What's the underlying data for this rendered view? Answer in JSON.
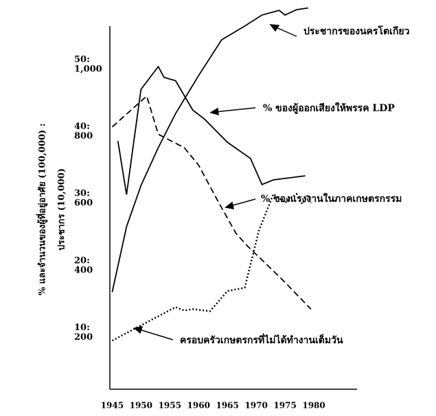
{
  "chart_data": {
    "type": "line",
    "y_axis_label": [
      "% และจำนวนของผู้ที่อยู่อาศัย (100,000) :",
      "ประชากร (10,000)"
    ],
    "xlim": [
      1944.6,
      1987.5
    ],
    "xticks": [
      1945,
      1950,
      1955,
      1960,
      1965,
      1970,
      1975,
      1980
    ],
    "ylim": [
      39,
      1123
    ],
    "yticks": [
      200,
      400,
      600,
      800,
      {
        "value": 1000,
        "label": "1,000"
      }
    ],
    "y2lim": [
      1.95,
      56.15
    ],
    "y2ticks": [
      {
        "value": 10,
        "label": "10:"
      },
      {
        "value": 20,
        "label": "20:"
      },
      {
        "value": 30,
        "label": "30:"
      },
      {
        "value": 40,
        "label": "40:"
      },
      {
        "value": 50,
        "label": "50:"
      }
    ],
    "series": [
      {
        "name": "ประชากรของนครโตเกียว",
        "color": "#000000",
        "style": "solid",
        "x": [
          1945,
          1947.5,
          1950,
          1953,
          1956,
          1960,
          1964,
          1968,
          1971,
          1974,
          1975,
          1977,
          1979
        ],
        "values": [
          329,
          524,
          647,
          760,
          862,
          975,
          1082,
          1123,
          1156,
          1170,
          1156,
          1172,
          1177
        ]
      },
      {
        "name": "% ของผู้ออกเสียงให้พรรค LDP",
        "color": "#000000",
        "style": "solid",
        "axis": "y2",
        "x": [
          1946,
          1947.5,
          1950,
          1953,
          1954,
          1956,
          1959,
          1961,
          1965,
          1969,
          1971,
          1973,
          1978.5
        ],
        "values": [
          39.0,
          31.0,
          46.7,
          50.1,
          48.5,
          48.0,
          43.6,
          42.3,
          38.8,
          36.4,
          32.5,
          33.2,
          33.8
        ]
      },
      {
        "name": "% ของแรงงานในภาคเกษตรกรรม",
        "color": "#000000",
        "style": "dashed",
        "axis": "y2",
        "x": [
          1945,
          1951,
          1953,
          1957.5,
          1960,
          1963.5,
          1966.5,
          1968.5,
          1972.5,
          1975,
          1979.5
        ],
        "values": [
          41.1,
          45.7,
          40.0,
          38.0,
          35.4,
          29.8,
          25.2,
          23.3,
          20.0,
          17.9,
          13.9
        ]
      },
      {
        "name": "ครอบครัวเกษตรกรที่ไม่ได้ทำงานเต็มวัน",
        "color": "#000000",
        "style": "dotted",
        "axis": "y2",
        "x": [
          1945,
          1956,
          1957.5,
          1959,
          1962,
          1965,
          1968,
          1970.5,
          1973,
          1975,
          1977,
          1978,
          1979,
          1979.5
        ],
        "values": [
          9.2,
          14.2,
          13.7,
          13.9,
          13.6,
          16.6,
          17.1,
          25.7,
          31.1,
          29.8,
          31.1,
          29.6,
          31.0,
          29.8
        ]
      }
    ]
  }
}
